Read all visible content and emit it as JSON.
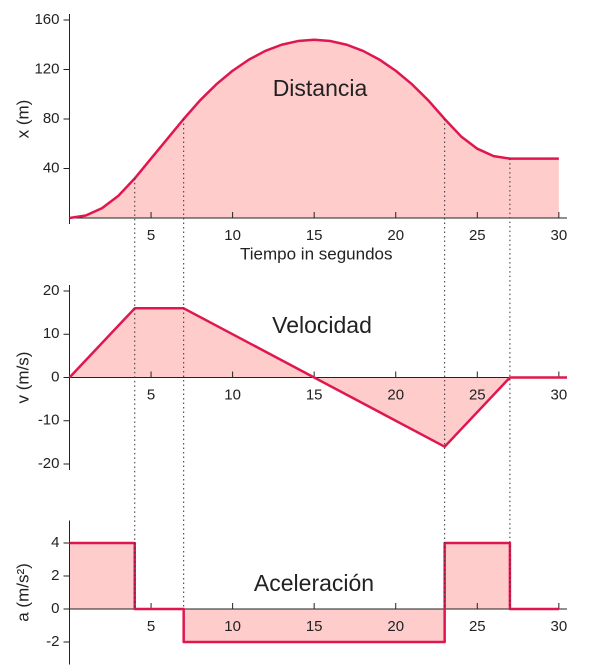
{
  "chart_data": [
    {
      "type": "line",
      "ylabel": "x (m)",
      "xlabel": "Tiempo in segundos",
      "annotation": "Distancia",
      "color": "#e0174f",
      "fill": "#ffcccc",
      "x": [
        0,
        1,
        2,
        3,
        4,
        5,
        6,
        7,
        8,
        9,
        10,
        11,
        12,
        13,
        14,
        15,
        16,
        17,
        18,
        19,
        20,
        21,
        22,
        23,
        24,
        25,
        26,
        27,
        28,
        29,
        30
      ],
      "values": [
        0,
        2,
        8,
        18,
        32,
        48,
        64,
        80,
        95,
        108,
        119,
        128,
        135,
        140,
        143,
        144,
        143,
        140,
        135,
        128,
        119,
        108,
        95,
        80,
        66,
        56,
        50,
        48,
        48,
        48,
        48
      ],
      "xlim": [
        0,
        30.5
      ],
      "xticks": [
        5,
        10,
        15,
        20,
        25,
        30
      ],
      "ylim": [
        0,
        160
      ],
      "yticks": [
        40,
        80,
        120,
        160
      ],
      "vlines": [
        4,
        7,
        23,
        27
      ]
    },
    {
      "type": "line",
      "ylabel": "v (m/s)",
      "annotation": "Velocidad",
      "color": "#e0174f",
      "fill": "#ffcccc",
      "x": [
        0,
        4,
        7,
        15,
        23,
        27,
        30.5
      ],
      "values": [
        0,
        16,
        16,
        0,
        -16,
        0,
        0
      ],
      "xlim": [
        0,
        30.5
      ],
      "xticks": [
        5,
        10,
        15,
        20,
        25,
        30
      ],
      "ylim": [
        -20,
        20
      ],
      "yticks": [
        -20,
        -10,
        0,
        10,
        20
      ]
    },
    {
      "type": "line",
      "ylabel": "a (m/s²)",
      "annotation": "Aceleración",
      "color": "#e0174f",
      "fill": "#ffcccc",
      "x": [
        0,
        4,
        4,
        7,
        7,
        23,
        23,
        27,
        27,
        30
      ],
      "values": [
        4,
        4,
        0,
        0,
        -2,
        -2,
        4,
        4,
        0,
        0
      ],
      "xlim": [
        0,
        30.5
      ],
      "xticks": [
        5,
        10,
        15,
        20,
        25,
        30
      ],
      "ylim": [
        -3,
        5
      ],
      "yticks": [
        -2,
        0,
        2,
        4
      ]
    }
  ]
}
